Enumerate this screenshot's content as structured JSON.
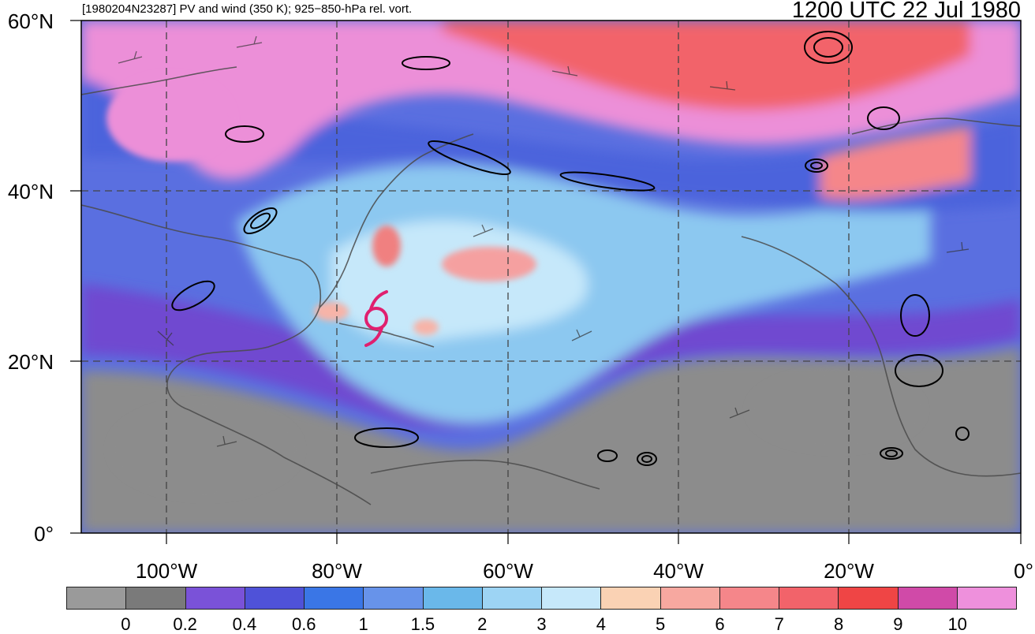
{
  "header": {
    "left_title": "[1980204N23287] PV and wind (350 K); 925−850-hPa rel. vort.",
    "right_title": "1200 UTC 22 Jul 1980"
  },
  "axes": {
    "lat_labels": [
      "60°N",
      "40°N",
      "20°N",
      "0°"
    ],
    "lon_labels": [
      "100°W",
      "80°W",
      "60°W",
      "40°W",
      "20°W",
      "0°"
    ]
  },
  "colorbar": {
    "labels": [
      "0",
      "0.2",
      "0.4",
      "0.6",
      "1",
      "1.5",
      "2",
      "3",
      "4",
      "5",
      "6",
      "7",
      "8",
      "9",
      "10"
    ],
    "colors": [
      "#9a9a9a",
      "#7a7a7a",
      "#7a52d8",
      "#4f52d8",
      "#3a76e6",
      "#6793ea",
      "#6ab8ea",
      "#9dd4f4",
      "#c6e8fa",
      "#fad2b4",
      "#f7a8a0",
      "#f5868a",
      "#f2636a",
      "#ef4545",
      "#d04aa8",
      "#ee90dc"
    ]
  },
  "storm_symbol": {
    "name": "tropical-cyclone-symbol",
    "color": "#e0206f"
  }
}
